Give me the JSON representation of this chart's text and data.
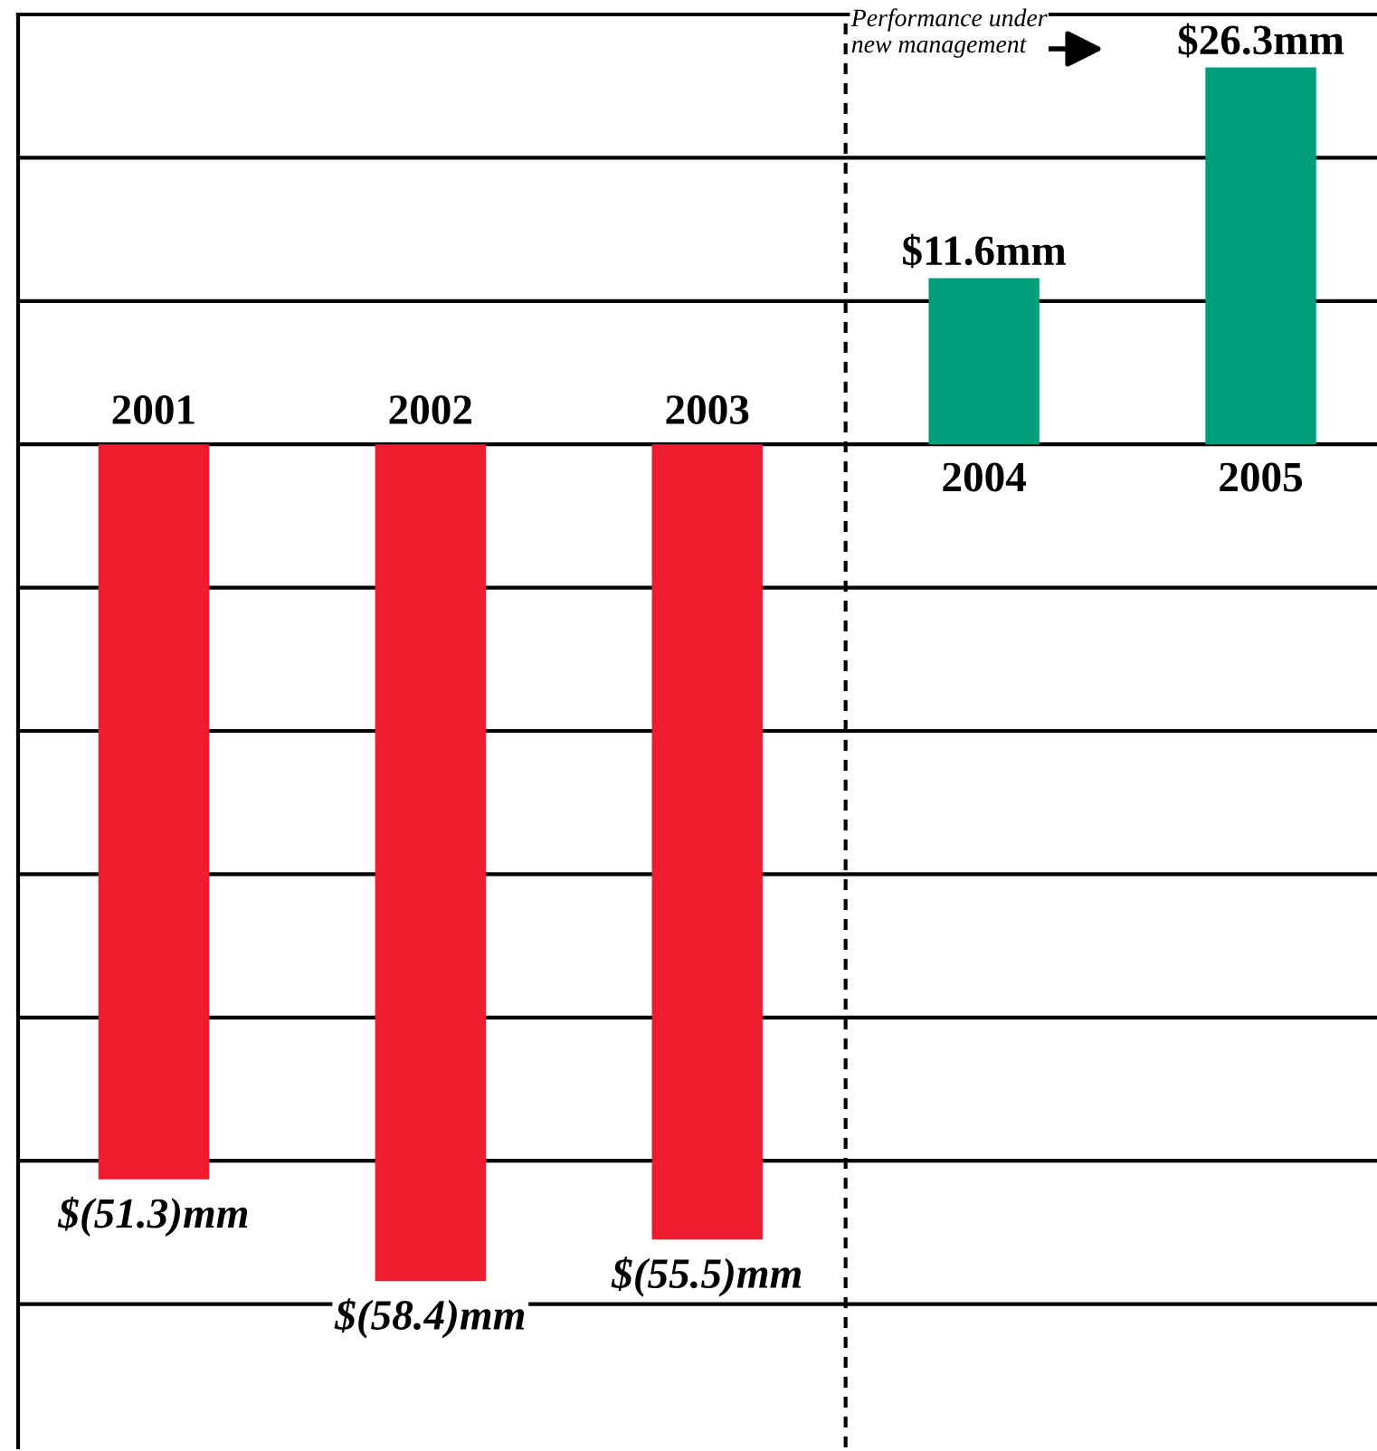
{
  "chart_data": {
    "type": "bar",
    "categories": [
      "2001",
      "2002",
      "2003",
      "2004",
      "2005"
    ],
    "values": [
      -51.3,
      -58.4,
      -55.5,
      11.6,
      26.3
    ],
    "colors": [
      "#ed1c2e",
      "#ed1c2e",
      "#ed1c2e",
      "#009e7a",
      "#009e7a"
    ],
    "value_labels": [
      "$(51.3)mm",
      "$(58.4)mm",
      "$(55.5)mm",
      "$11.6mm",
      "$26.3mm"
    ],
    "ylim": [
      -70,
      30
    ],
    "yticks": [
      {
        "value": -60,
        "label": null
      },
      {
        "value": -50,
        "label": null
      },
      {
        "value": -40,
        "label": null
      },
      {
        "value": -30,
        "label": null
      },
      {
        "value": -20,
        "label": null
      },
      {
        "value": -10,
        "label": null
      },
      {
        "value": 0,
        "label": null
      },
      {
        "value": 10,
        "label": null
      },
      {
        "value": 20,
        "label": null
      },
      {
        "value": 30,
        "label": null
      }
    ],
    "grid": "y",
    "annotations": [
      "Performance under\nnew management"
    ]
  }
}
